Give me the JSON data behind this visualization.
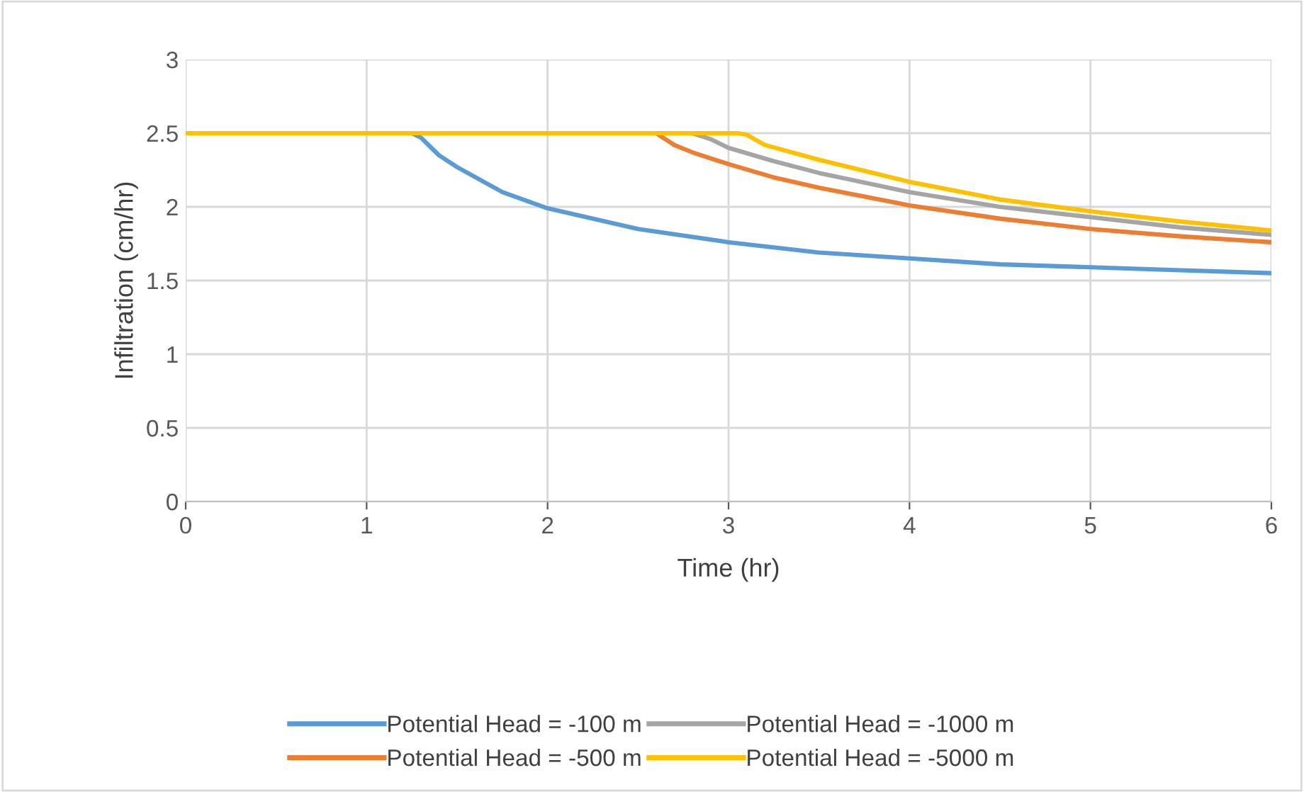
{
  "chart_data": {
    "type": "line",
    "xlabel": "Time (hr)",
    "ylabel": "Infiltration (cm/hr)",
    "xlim": [
      0,
      6
    ],
    "xticks": [
      0,
      1,
      2,
      3,
      4,
      5,
      6
    ],
    "ylim": [
      0,
      3
    ],
    "yticks": [
      0,
      0.5,
      1,
      1.5,
      2,
      2.5,
      3
    ],
    "grid": true,
    "legend": "bottom",
    "marker": "none",
    "line_style": "solid",
    "series": [
      {
        "name": "Potential Head = -100 m",
        "color": "#5b9bd5",
        "x": [
          0,
          1.25,
          1.3,
          1.4,
          1.5,
          1.75,
          2,
          2.5,
          3,
          3.5,
          4,
          4.5,
          5,
          5.5,
          6
        ],
        "values": [
          2.5,
          2.5,
          2.47,
          2.35,
          2.27,
          2.1,
          1.99,
          1.85,
          1.76,
          1.69,
          1.65,
          1.61,
          1.59,
          1.57,
          1.55
        ]
      },
      {
        "name": "Potential Head = -500 m",
        "color": "#ed7d31",
        "x": [
          0,
          2.6,
          2.7,
          2.8,
          3,
          3.25,
          3.5,
          4,
          4.5,
          5,
          5.5,
          6
        ],
        "values": [
          2.5,
          2.5,
          2.42,
          2.37,
          2.29,
          2.2,
          2.13,
          2.01,
          1.92,
          1.85,
          1.8,
          1.76
        ]
      },
      {
        "name": "Potential Head = -1000 m",
        "color": "#a5a5a5",
        "x": [
          0,
          2.8,
          2.9,
          3,
          3.25,
          3.5,
          4,
          4.5,
          5,
          5.5,
          6
        ],
        "values": [
          2.5,
          2.5,
          2.46,
          2.4,
          2.31,
          2.23,
          2.1,
          2.0,
          1.93,
          1.86,
          1.81
        ]
      },
      {
        "name": "Potential Head = -5000 m",
        "color": "#ffc000",
        "x": [
          0,
          3.05,
          3.1,
          3.2,
          3.5,
          4,
          4.5,
          5,
          5.5,
          6
        ],
        "values": [
          2.5,
          2.5,
          2.49,
          2.42,
          2.32,
          2.17,
          2.05,
          1.97,
          1.9,
          1.84
        ]
      }
    ]
  }
}
